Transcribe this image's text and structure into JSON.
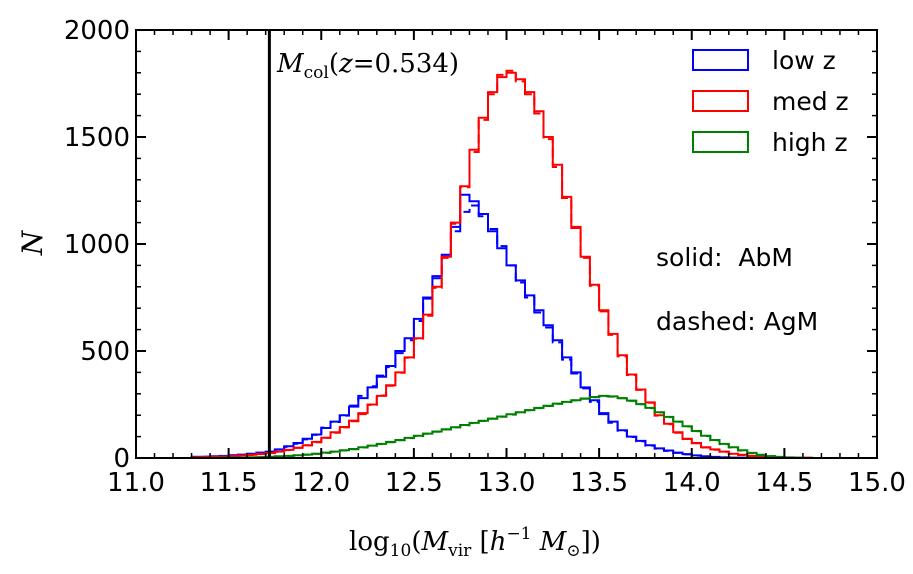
{
  "chart_data": {
    "type": "line",
    "subtype": "step-histogram",
    "xlabel": "log10(Mvir [h^-1 M⊙])",
    "ylabel": "N",
    "xlim": [
      11.0,
      15.0
    ],
    "ylim": [
      0,
      2000
    ],
    "xticks": [
      "11.0",
      "11.5",
      "12.0",
      "12.5",
      "13.0",
      "13.5",
      "14.0",
      "14.5",
      "15.0"
    ],
    "yticks": [
      "0",
      "500",
      "1000",
      "1500",
      "2000"
    ],
    "x_tick_values": [
      11.0,
      11.5,
      12.0,
      12.5,
      13.0,
      13.5,
      14.0,
      14.5,
      15.0
    ],
    "y_tick_values": [
      0,
      500,
      1000,
      1500,
      2000
    ],
    "vline": {
      "x": 11.72,
      "label": "Mcol(z=0.534)"
    },
    "annotations": [
      "solid:  AbM",
      "dashed: AgM"
    ],
    "legend": {
      "placement": "top-right",
      "entries": [
        "low z",
        "med z",
        "high z"
      ]
    },
    "colors": {
      "low": "#0000ff",
      "med": "#ff0000",
      "high": "#008000"
    },
    "bin_edges": [
      11.3,
      11.35,
      11.4,
      11.45,
      11.5,
      11.55,
      11.6,
      11.65,
      11.7,
      11.75,
      11.8,
      11.85,
      11.9,
      11.95,
      12.0,
      12.05,
      12.1,
      12.15,
      12.2,
      12.25,
      12.3,
      12.35,
      12.4,
      12.45,
      12.5,
      12.55,
      12.6,
      12.65,
      12.7,
      12.75,
      12.8,
      12.85,
      12.9,
      12.95,
      13.0,
      13.05,
      13.1,
      13.15,
      13.2,
      13.25,
      13.3,
      13.35,
      13.4,
      13.45,
      13.5,
      13.55,
      13.6,
      13.65,
      13.7,
      13.75,
      13.8,
      13.85,
      13.9,
      13.95,
      14.0,
      14.05,
      14.1,
      14.15,
      14.2,
      14.25,
      14.3,
      14.35,
      14.4,
      14.45,
      14.5,
      14.55,
      14.6,
      14.65,
      14.7
    ],
    "series": [
      {
        "name": "low z",
        "method": "AbM",
        "style": "solid",
        "values": [
          5,
          6,
          8,
          10,
          13,
          16,
          20,
          25,
          30,
          40,
          55,
          70,
          90,
          110,
          140,
          170,
          200,
          240,
          280,
          330,
          380,
          430,
          500,
          560,
          650,
          750,
          850,
          950,
          1080,
          1230,
          1200,
          1140,
          1060,
          980,
          900,
          830,
          760,
          690,
          620,
          550,
          470,
          400,
          330,
          270,
          210,
          170,
          130,
          100,
          80,
          60,
          45,
          35,
          25,
          18,
          12,
          8,
          5,
          3,
          2,
          1,
          1,
          0,
          0,
          0,
          0,
          0,
          0,
          0
        ]
      },
      {
        "name": "low z",
        "method": "AgM",
        "style": "dashed",
        "values": [
          5,
          6,
          7,
          9,
          12,
          15,
          19,
          24,
          29,
          38,
          52,
          67,
          87,
          108,
          142,
          168,
          198,
          245,
          290,
          335,
          385,
          425,
          490,
          550,
          640,
          745,
          840,
          940,
          1060,
          1150,
          1180,
          1130,
          1070,
          990,
          900,
          820,
          750,
          680,
          610,
          540,
          460,
          395,
          325,
          262,
          205,
          165,
          128,
          98,
          78,
          58,
          44,
          33,
          24,
          17,
          11,
          7,
          4,
          3,
          2,
          1,
          1,
          0,
          0,
          0,
          0,
          0,
          0,
          0
        ]
      },
      {
        "name": "med z",
        "method": "AbM",
        "style": "solid",
        "values": [
          3,
          4,
          5,
          7,
          9,
          12,
          15,
          19,
          24,
          30,
          38,
          48,
          60,
          75,
          95,
          120,
          145,
          175,
          210,
          250,
          290,
          340,
          400,
          470,
          560,
          670,
          800,
          940,
          1100,
          1270,
          1440,
          1590,
          1710,
          1780,
          1800,
          1770,
          1710,
          1620,
          1500,
          1370,
          1220,
          1080,
          940,
          810,
          690,
          580,
          480,
          390,
          320,
          260,
          200,
          160,
          120,
          90,
          70,
          50,
          40,
          30,
          20,
          15,
          10,
          7,
          5,
          3,
          2,
          1,
          1,
          0
        ]
      },
      {
        "name": "med z",
        "method": "AgM",
        "style": "dashed",
        "values": [
          3,
          4,
          5,
          6,
          9,
          11,
          14,
          18,
          23,
          29,
          37,
          47,
          59,
          74,
          94,
          118,
          143,
          172,
          205,
          248,
          292,
          338,
          398,
          468,
          558,
          665,
          795,
          935,
          1095,
          1265,
          1430,
          1580,
          1700,
          1790,
          1810,
          1760,
          1700,
          1610,
          1490,
          1360,
          1215,
          1075,
          935,
          805,
          685,
          575,
          475,
          388,
          318,
          258,
          198,
          158,
          118,
          89,
          69,
          49,
          39,
          29,
          19,
          14,
          9,
          7,
          4,
          3,
          2,
          1,
          1,
          0
        ]
      },
      {
        "name": "high z",
        "method": "AbM",
        "style": "solid",
        "values": [
          0,
          0,
          0,
          1,
          1,
          2,
          3,
          4,
          6,
          8,
          10,
          13,
          16,
          20,
          25,
          30,
          36,
          42,
          50,
          58,
          66,
          75,
          84,
          94,
          104,
          114,
          124,
          134,
          144,
          154,
          164,
          174,
          184,
          194,
          204,
          214,
          224,
          234,
          244,
          254,
          262,
          270,
          278,
          285,
          290,
          288,
          280,
          268,
          252,
          234,
          214,
          192,
          170,
          148,
          126,
          104,
          84,
          66,
          50,
          36,
          24,
          15,
          9,
          5,
          3,
          1,
          0,
          0
        ]
      },
      {
        "name": "high z",
        "method": "AgM",
        "style": "dashed",
        "values": [
          0,
          0,
          0,
          1,
          1,
          2,
          3,
          4,
          5,
          7,
          9,
          12,
          15,
          19,
          24,
          29,
          35,
          41,
          49,
          57,
          65,
          74,
          83,
          93,
          103,
          113,
          123,
          133,
          143,
          153,
          163,
          173,
          183,
          193,
          203,
          213,
          223,
          233,
          243,
          253,
          261,
          269,
          277,
          284,
          289,
          287,
          279,
          267,
          251,
          233,
          213,
          191,
          169,
          147,
          125,
          103,
          83,
          65,
          49,
          35,
          23,
          14,
          8,
          4,
          2,
          1,
          0,
          0
        ]
      }
    ]
  }
}
